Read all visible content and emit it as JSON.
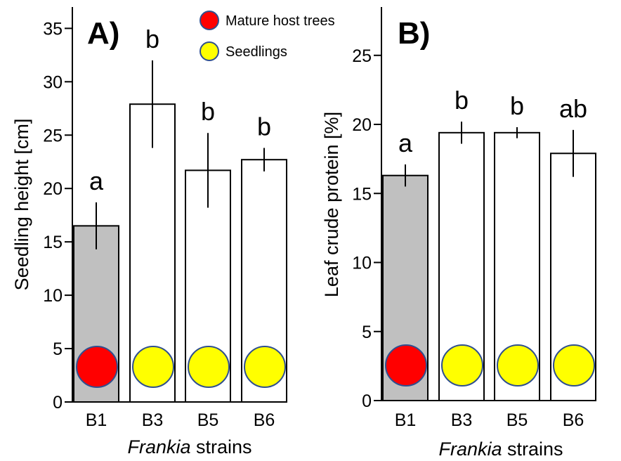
{
  "legend": {
    "mature_label": "Mature host trees",
    "seedling_label": "Seedlings",
    "mature_color": "#ff0000",
    "seedling_color": "#ffff00",
    "circle_stroke": "#2f4f8f"
  },
  "chart_data": [
    {
      "type": "bar",
      "panel_label": "A)",
      "title": "",
      "xlabel_italic": "Frankia",
      "xlabel_rest": " strains",
      "ylabel": "Seedling height [cm]",
      "ylim": [
        0,
        37
      ],
      "yticks": [
        0,
        5,
        10,
        15,
        20,
        25,
        30,
        35
      ],
      "categories": [
        "B1",
        "B3",
        "B5",
        "B6"
      ],
      "values": [
        16.5,
        27.9,
        21.7,
        22.7
      ],
      "errors": [
        2.2,
        4.1,
        3.5,
        1.1
      ],
      "significance": [
        "a",
        "b",
        "b",
        "b"
      ],
      "bar_colors": [
        "#c0c0c0",
        "#ffffff",
        "#ffffff",
        "#ffffff"
      ],
      "marker_colors": [
        "#ff0000",
        "#ffff00",
        "#ffff00",
        "#ffff00"
      ],
      "grid": false
    },
    {
      "type": "bar",
      "panel_label": "B)",
      "title": "",
      "xlabel_italic": "Frankia",
      "xlabel_rest": " strains",
      "ylabel": "Leaf crude protein [%]",
      "ylim": [
        0,
        28.5
      ],
      "yticks": [
        0,
        5,
        10,
        15,
        20,
        25
      ],
      "categories": [
        "B1",
        "B3",
        "B5",
        "B6"
      ],
      "values": [
        16.3,
        19.4,
        19.4,
        17.9
      ],
      "errors": [
        0.8,
        0.8,
        0.4,
        1.7
      ],
      "significance": [
        "a",
        "b",
        "b",
        "ab"
      ],
      "bar_colors": [
        "#c0c0c0",
        "#ffffff",
        "#ffffff",
        "#ffffff"
      ],
      "marker_colors": [
        "#ff0000",
        "#ffff00",
        "#ffff00",
        "#ffff00"
      ],
      "grid": false
    }
  ]
}
